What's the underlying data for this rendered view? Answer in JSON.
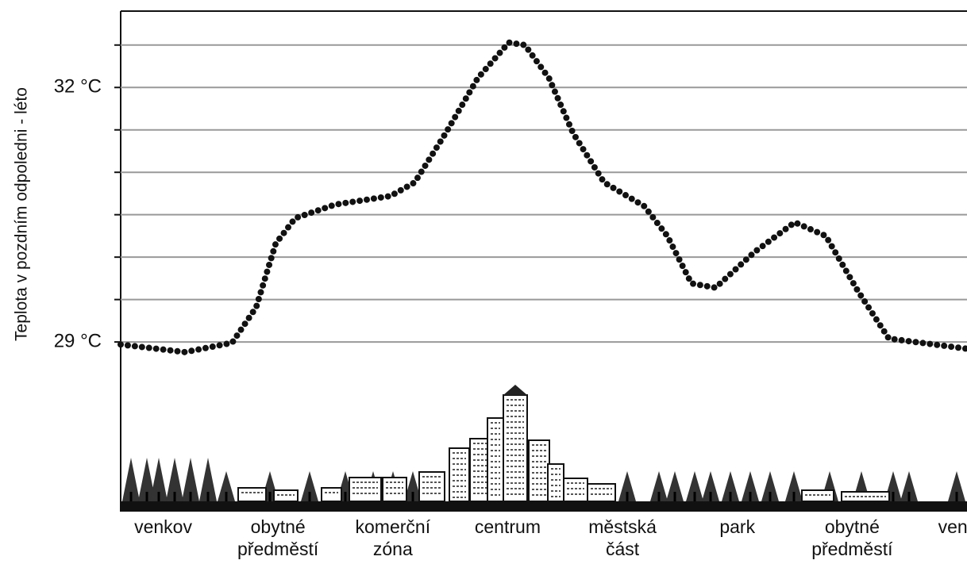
{
  "chart_data": {
    "type": "line",
    "y_label": "Teplota v pozdním odpoledni - léto",
    "categories": [
      "venkov",
      "obytné předměstí",
      "komerční zóna",
      "centrum",
      "městská část",
      "park",
      "obytné předměstí",
      "venkov"
    ],
    "xlim": [
      -0.37,
      7.0
    ],
    "ylim": [
      27,
      32.9
    ],
    "yticks": [
      {
        "value": 29,
        "label": "29 °C"
      },
      {
        "value": 32,
        "label": "32 °C"
      }
    ],
    "minor_yticks": [
      29,
      29.5,
      30,
      30.5,
      31,
      31.5,
      32,
      32.5
    ],
    "grid": true,
    "series": [
      {
        "color": "#111111",
        "x": [
          -0.37,
          0.19,
          0.6,
          0.81,
          0.98,
          1.15,
          1.5,
          1.98,
          2.19,
          2.46,
          2.74,
          3.01,
          3.15,
          3.36,
          3.57,
          3.84,
          4.19,
          4.39,
          4.6,
          4.81,
          5.15,
          5.5,
          5.77,
          6.05,
          6.32,
          7.0
        ],
        "values": [
          28.97,
          28.88,
          28.99,
          29.41,
          30.16,
          30.46,
          30.62,
          30.72,
          30.88,
          31.46,
          32.11,
          32.53,
          32.5,
          32.11,
          31.46,
          30.88,
          30.6,
          30.25,
          29.69,
          29.64,
          30.06,
          30.41,
          30.25,
          29.6,
          29.04,
          28.92
        ]
      }
    ]
  }
}
